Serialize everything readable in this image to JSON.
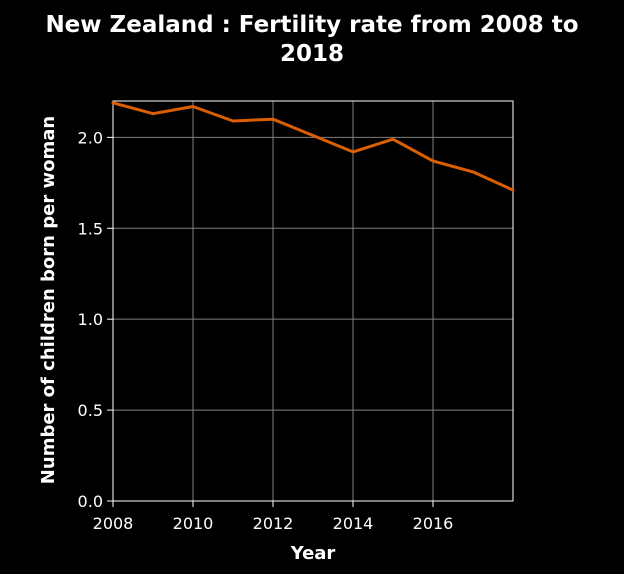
{
  "chart_data": {
    "type": "line",
    "title_lines": [
      "New Zealand : Fertility rate from 2008 to",
      "2018"
    ],
    "xlabel": "Year",
    "ylabel": "Number of children born per woman",
    "x": [
      2008,
      2009,
      2010,
      2011,
      2012,
      2013,
      2014,
      2015,
      2016,
      2017,
      2018
    ],
    "series": [
      {
        "values": [
          2.19,
          2.13,
          2.17,
          2.09,
          2.1,
          2.01,
          1.92,
          1.99,
          1.87,
          1.81,
          1.71
        ]
      }
    ],
    "xticks": [
      2008,
      2010,
      2012,
      2014,
      2016
    ],
    "xtick_labels": [
      "2008",
      "2010",
      "2012",
      "2014",
      "2016"
    ],
    "yticks": [
      0.0,
      0.5,
      1.0,
      1.5,
      2.0
    ],
    "ytick_labels": [
      "0.0",
      "0.5",
      "1.0",
      "1.5",
      "2.0"
    ],
    "xlim": [
      2008,
      2018
    ],
    "ylim": [
      0.0,
      2.2
    ],
    "grid": true,
    "legend": "none",
    "colors": {
      "line": "#d95f02",
      "background": "#000000",
      "grid": "#7f7f7f",
      "frame": "#ffffff",
      "text": "#ffffff"
    }
  }
}
